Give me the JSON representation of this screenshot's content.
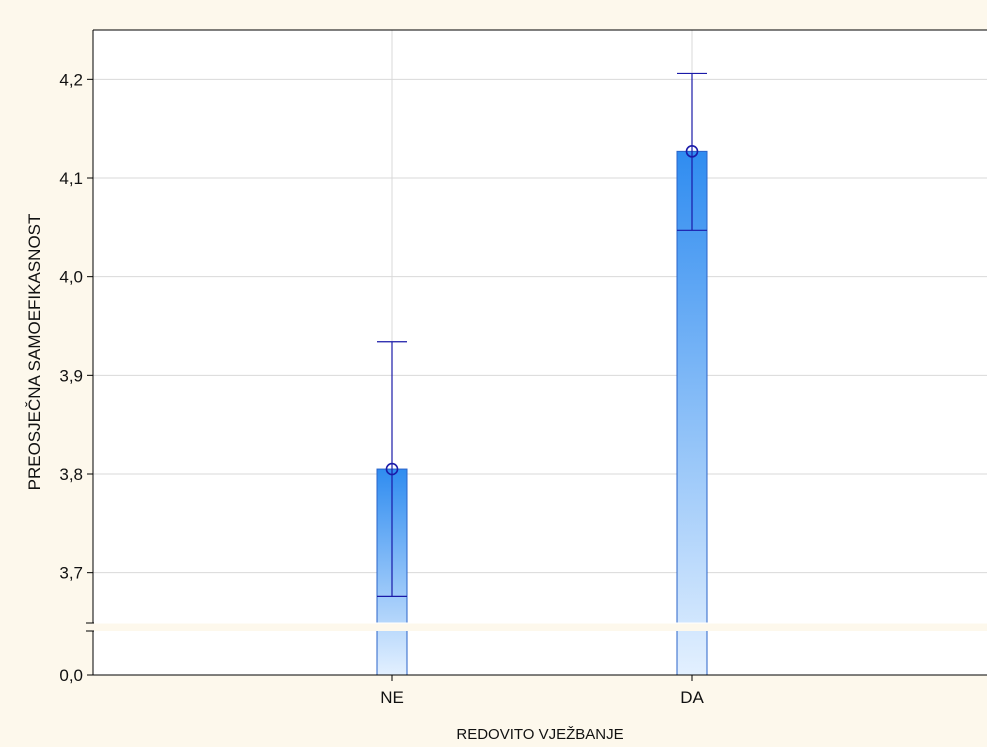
{
  "chart_data": {
    "type": "bar",
    "title": "",
    "xlabel": "REDOVITO VJEŽBANJE",
    "ylabel": "PREOSJEČNA SAMOEFIKASNOST",
    "categories": [
      "NE",
      "DA"
    ],
    "series": [
      {
        "values": [
          3.805,
          4.127
        ],
        "error_lower": [
          3.676,
          4.047
        ],
        "error_upper": [
          3.934,
          4.206
        ]
      }
    ],
    "ylim_main": [
      3.65,
      4.25
    ],
    "ylim_broken_base": [
      0.0,
      0.0
    ],
    "y_axis_break": true,
    "y_ticks": [
      {
        "value": 0.0,
        "label": "0,0"
      },
      {
        "value": 3.7,
        "label": "3,7"
      },
      {
        "value": 3.8,
        "label": "3,8"
      },
      {
        "value": 3.9,
        "label": "3,9"
      },
      {
        "value": 4.0,
        "label": "4,0"
      },
      {
        "value": 4.1,
        "label": "4,1"
      },
      {
        "value": 4.2,
        "label": "4,2"
      }
    ],
    "grid": true,
    "colors": {
      "bar_top": "#2f8cf0",
      "bar_bottom": "#e3f0ff",
      "bar_edge": "#2a63c9",
      "error": "#1a1aa8",
      "grid": "#d9d9d9",
      "plot_bg": "#ffffff",
      "figure_bg": "#fdf8ec"
    }
  }
}
